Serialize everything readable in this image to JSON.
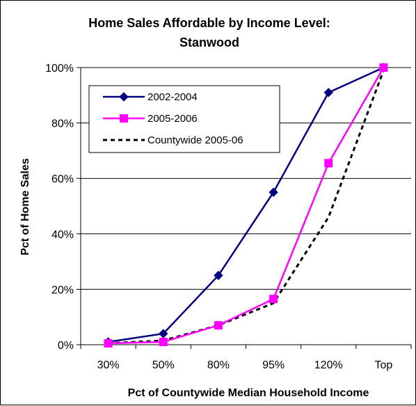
{
  "chart_data": {
    "type": "line",
    "title": "Home Sales Affordable by Income Level:",
    "subtitle": "Stanwood",
    "xlabel": "Pct of Countywide Median Household Income",
    "ylabel": "Pct of Home Sales",
    "categories": [
      "30%",
      "50%",
      "80%",
      "95%",
      "120%",
      "Top"
    ],
    "ylim": [
      0,
      100
    ],
    "yticks": [
      0,
      20,
      40,
      60,
      80,
      100
    ],
    "ytick_labels": [
      "0%",
      "20%",
      "40%",
      "60%",
      "80%",
      "100%"
    ],
    "grid": true,
    "legend_position": "top-left",
    "series": [
      {
        "name": "2002-2004",
        "values": [
          1,
          4,
          25,
          55,
          91,
          100
        ],
        "color": "#000080",
        "marker": "diamond",
        "line": "solid"
      },
      {
        "name": "2005-2006",
        "values": [
          0.5,
          1,
          7,
          16.5,
          65.5,
          100
        ],
        "color": "#ff00ff",
        "marker": "square",
        "line": "solid"
      },
      {
        "name": "Countywide 2005-06",
        "values": [
          0.5,
          1.5,
          7,
          15,
          46,
          99
        ],
        "color": "#000000",
        "marker": "none",
        "line": "dashed"
      }
    ]
  }
}
